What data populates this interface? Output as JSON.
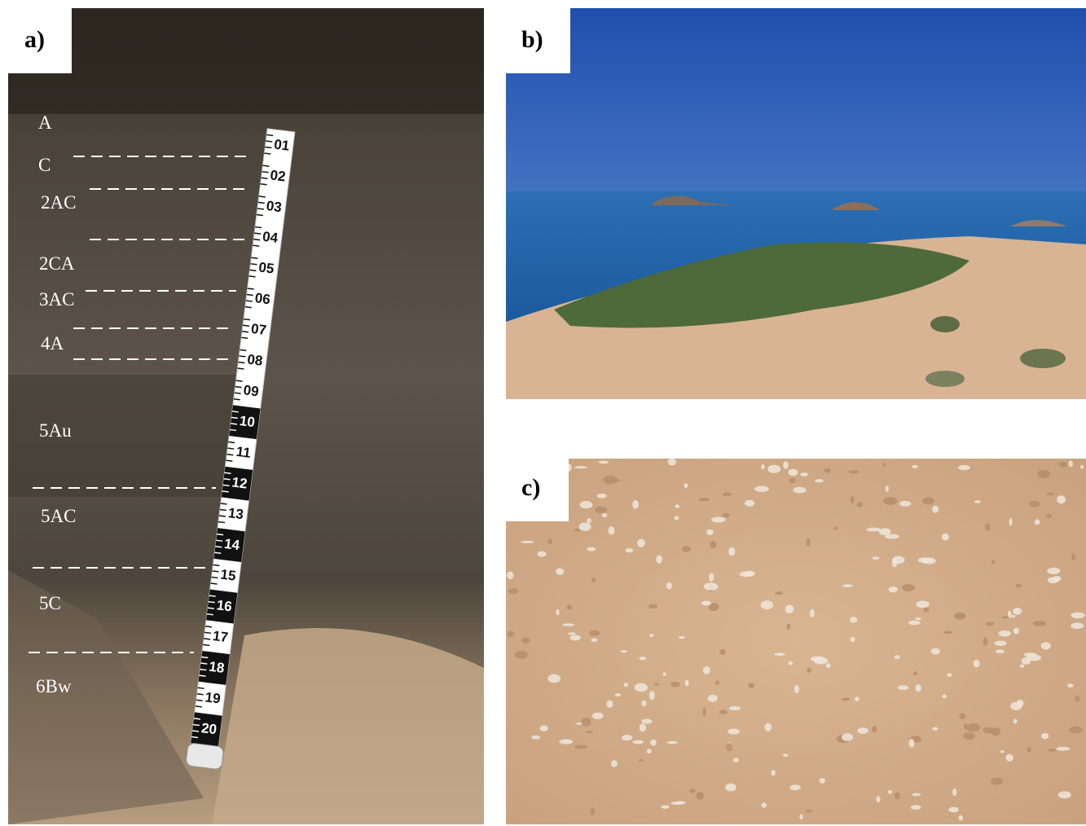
{
  "panels": [
    {
      "label": "a)",
      "horizons": [
        "A",
        "C",
        "2AC",
        "2CA",
        "3AC",
        "4A",
        "5Au",
        "5AC",
        "5C",
        "6Bw"
      ],
      "ruler": [
        "01",
        "02",
        "03",
        "04",
        "05",
        "06",
        "07",
        "08",
        "09",
        "10",
        "11",
        "12",
        "13",
        "14",
        "15",
        "16",
        "17",
        "18",
        "19",
        "20"
      ]
    },
    {
      "label": "b)"
    },
    {
      "label": "c)"
    }
  ]
}
